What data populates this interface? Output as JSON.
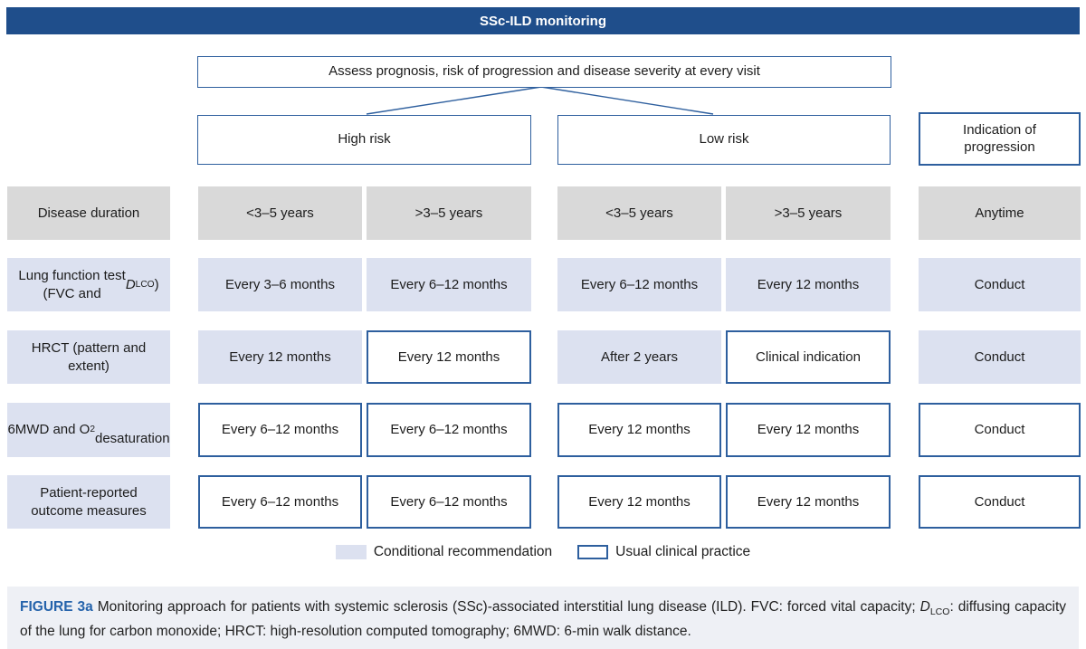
{
  "banner": {
    "title": "SSc-ILD monitoring"
  },
  "flow": {
    "assess": "Assess prognosis, risk of progression and disease severity at every visit",
    "high_risk": "High risk",
    "low_risk": "Low risk",
    "indication": "Indication of progression"
  },
  "table": {
    "rows": [
      {
        "label_html": "Disease duration",
        "label_style": "gray",
        "cells": [
          {
            "text": "<3–5 years",
            "style": "gray"
          },
          {
            "text": ">3–5 years",
            "style": "gray"
          },
          {
            "text": "<3–5 years",
            "style": "gray"
          },
          {
            "text": ">3–5 years",
            "style": "gray"
          },
          {
            "text": "Anytime",
            "style": "gray"
          }
        ]
      },
      {
        "label_html": "Lung function test<br>(FVC and <i>D</i><sub>LCO</sub>)",
        "label_style": "conditional",
        "cells": [
          {
            "text": "Every 3–6 months",
            "style": "conditional"
          },
          {
            "text": "Every 6–12 months",
            "style": "conditional"
          },
          {
            "text": "Every 6–12 months",
            "style": "conditional"
          },
          {
            "text": "Every 12 months",
            "style": "conditional"
          },
          {
            "text": "Conduct",
            "style": "conditional"
          }
        ]
      },
      {
        "label_html": "HRCT (pattern and<br>extent)",
        "label_style": "conditional",
        "cells": [
          {
            "text": "Every 12 months",
            "style": "conditional"
          },
          {
            "text": "Every 12 months",
            "style": "usual"
          },
          {
            "text": "After 2 years",
            "style": "conditional"
          },
          {
            "text": "Clinical indication",
            "style": "usual"
          },
          {
            "text": "Conduct",
            "style": "conditional"
          }
        ]
      },
      {
        "label_html": "6MWD and O<sub>2</sub><br>desaturation",
        "label_style": "conditional",
        "cells": [
          {
            "text": "Every 6–12 months",
            "style": "usual"
          },
          {
            "text": "Every 6–12 months",
            "style": "usual"
          },
          {
            "text": "Every 12 months",
            "style": "usual"
          },
          {
            "text": "Every 12 months",
            "style": "usual"
          },
          {
            "text": "Conduct",
            "style": "usual"
          }
        ]
      },
      {
        "label_html": "Patient-reported<br>outcome measures",
        "label_style": "conditional",
        "cells": [
          {
            "text": "Every 6–12 months",
            "style": "usual"
          },
          {
            "text": "Every 6–12 months",
            "style": "usual"
          },
          {
            "text": "Every 12 months",
            "style": "usual"
          },
          {
            "text": "Every 12 months",
            "style": "usual"
          },
          {
            "text": "Conduct",
            "style": "usual"
          }
        ]
      }
    ]
  },
  "legend": {
    "conditional_label": "Conditional recommendation",
    "usual_label": "Usual clinical practice"
  },
  "caption": {
    "label": "FIGURE 3a",
    "text_html": "Monitoring approach for patients with systemic sclerosis (SSc)-associated interstitial lung disease (ILD). FVC: forced vital capacity; <i>D</i><sub>LCO</sub>: diffusing capacity of the lung for carbon monoxide; HRCT: high-resolution computed tomography; 6MWD: 6-min walk distance."
  },
  "colors": {
    "banner_blue": "#1f4e8b",
    "border_blue": "#2e5f9e",
    "conditional_fill": "#dce1f0",
    "gray_fill": "#d9d9d9",
    "caption_bg": "#eef0f5",
    "figure_label_blue": "#2563ab"
  }
}
